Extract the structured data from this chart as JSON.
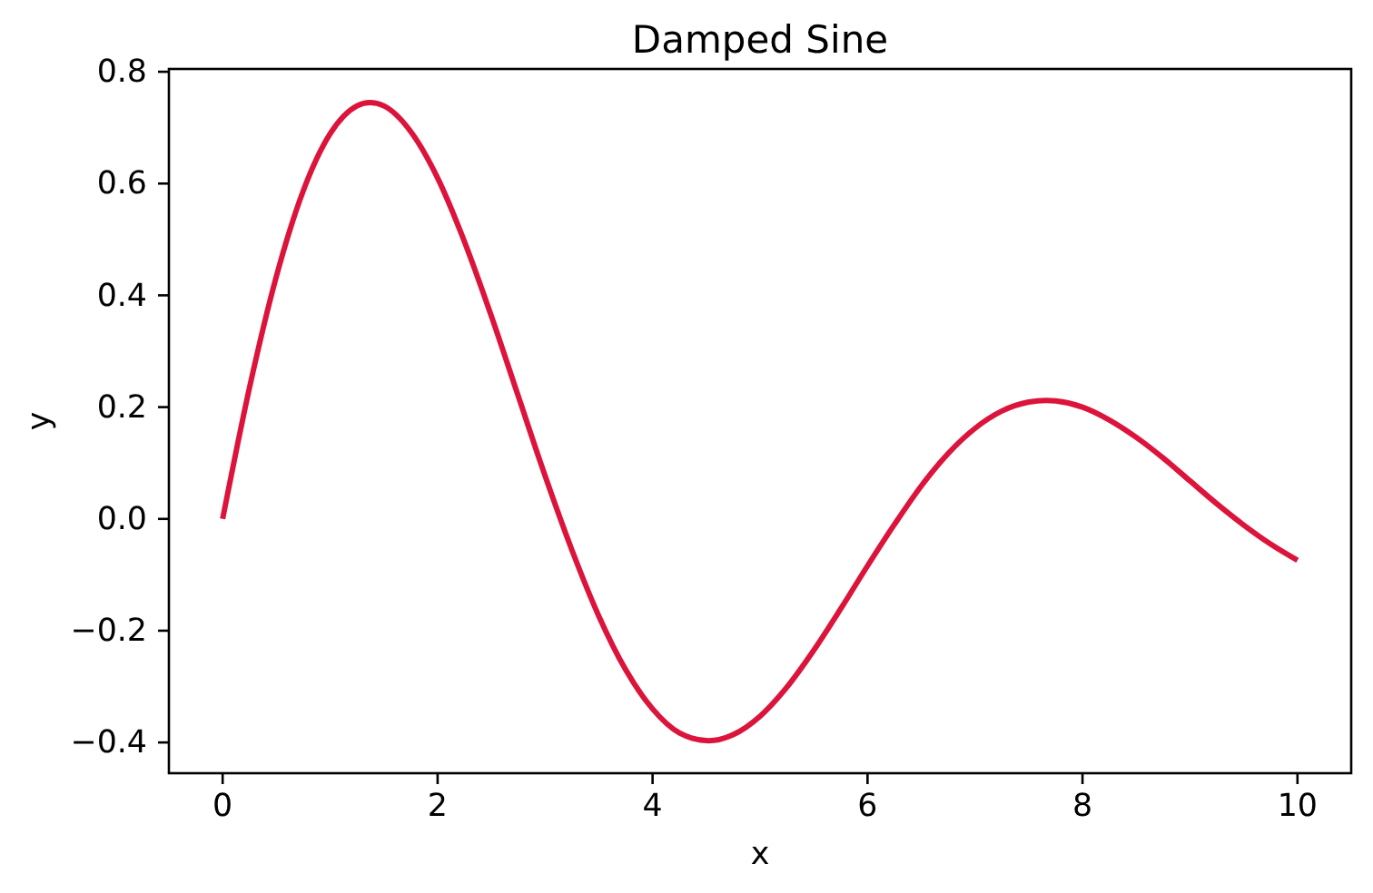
{
  "chart_data": {
    "type": "line",
    "title": "Damped Sine",
    "xlabel": "x",
    "ylabel": "y",
    "x": [
      0,
      0.25,
      0.5,
      0.75,
      1,
      1.25,
      1.37,
      1.5,
      1.75,
      2,
      2.25,
      2.5,
      2.75,
      3,
      3.25,
      3.5,
      3.75,
      4,
      4.25,
      4.52,
      4.75,
      5,
      5.25,
      5.5,
      5.75,
      6,
      6.25,
      6.5,
      6.75,
      7,
      7.25,
      7.5,
      7.66,
      7.75,
      8,
      8.25,
      8.5,
      8.75,
      9,
      9.25,
      9.5,
      9.75,
      10
    ],
    "series": [
      {
        "color": "#dc143c",
        "values": [
          0,
          0.235,
          0.434,
          0.587,
          0.689,
          0.739,
          0.745,
          0.739,
          0.693,
          0.61,
          0.496,
          0.363,
          0.22,
          0.077,
          -0.056,
          -0.174,
          -0.27,
          -0.34,
          -0.383,
          -0.397,
          -0.386,
          -0.353,
          -0.301,
          -0.235,
          -0.161,
          -0.084,
          -0.01,
          0.059,
          0.117,
          0.162,
          0.193,
          0.209,
          0.212,
          0.211,
          0.2,
          0.177,
          0.146,
          0.109,
          0.068,
          0.027,
          -0.011,
          -0.045,
          -0.074
        ]
      }
    ],
    "xlim": [
      -0.5,
      10.5
    ],
    "ylim": [
      -0.455,
      0.805
    ],
    "xticks": [
      0,
      2,
      4,
      6,
      8,
      10
    ],
    "yticks": [
      {
        "value": -0.4,
        "label": "−0.4"
      },
      {
        "value": -0.2,
        "label": "−0.2"
      },
      {
        "value": 0,
        "label": "0.0"
      },
      {
        "value": 0.2,
        "label": "0.2"
      },
      {
        "value": 0.4,
        "label": "0.4"
      },
      {
        "value": 0.6,
        "label": "0.6"
      },
      {
        "value": 0.8,
        "label": "0.8"
      }
    ]
  }
}
